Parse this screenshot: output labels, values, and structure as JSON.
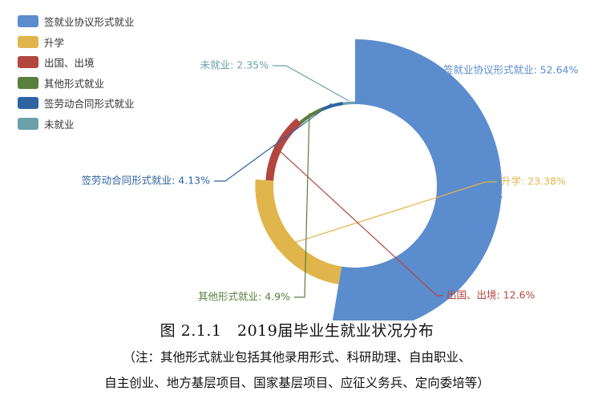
{
  "chart_data": {
    "type": "pie",
    "variant": "rose-donut",
    "start_angle_deg": 0,
    "direction": "clockwise",
    "legend_position": "top-left",
    "label_separator": ": ",
    "slices": [
      {
        "label": "签就业协议形式就业",
        "value": 52.64,
        "display": "52.64%",
        "color": "#5b8cce"
      },
      {
        "label": "升学",
        "value": 23.38,
        "display": "23.38%",
        "color": "#e0b54c"
      },
      {
        "label": "出国、出境",
        "value": 12.6,
        "display": "12.6%",
        "color": "#b3463f"
      },
      {
        "label": "其他形式就业",
        "value": 4.9,
        "display": "4.9%",
        "color": "#5a7f3a"
      },
      {
        "label": "签劳动合同形式就业",
        "value": 4.13,
        "display": "4.13%",
        "color": "#2e63a1"
      },
      {
        "label": "未就业",
        "value": 2.35,
        "display": "2.35%",
        "color": "#6aa1ab"
      }
    ]
  },
  "caption": {
    "title": "图 2.1.1　2019届毕业生就业状况分布",
    "note_line1": "（注：其他形式就业包括其他录用形式、科研助理、自由职业、",
    "note_line2": "自主创业、地方基层项目、国家基层项目、应征义务兵、定向委培等）"
  }
}
